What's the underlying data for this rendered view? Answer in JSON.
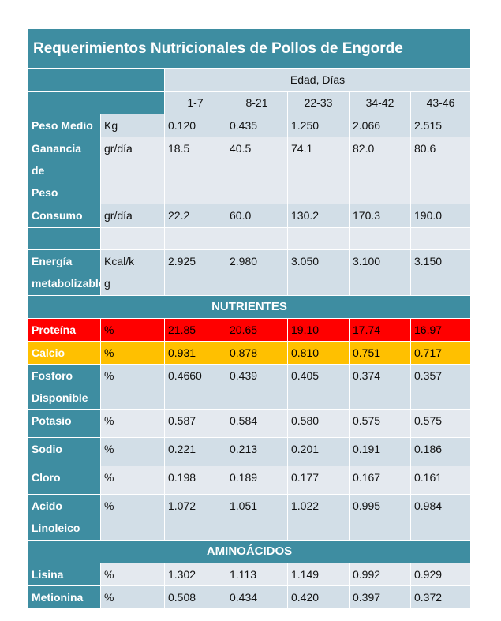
{
  "title": "Requerimientos Nutricionales de Pollos de Engorde",
  "age_header": "Edad, Días",
  "age_ranges": [
    "1-7",
    "8-21",
    "22-33",
    "34-42",
    "43-46"
  ],
  "rows_top": [
    {
      "label": "Peso Medio",
      "unit": "Kg",
      "values": [
        "0.120",
        "0.435",
        "1.250",
        "2.066",
        "2.515"
      ]
    },
    {
      "label_l1": "Ganancia de",
      "label_l2": "Peso",
      "unit": "gr/día",
      "values": [
        "18.5",
        "40.5",
        "74.1",
        "82.0",
        "80.6"
      ]
    },
    {
      "label": "Consumo",
      "unit": "gr/día",
      "values": [
        "22.2",
        "60.0",
        "130.2",
        "170.3",
        "190.0"
      ]
    },
    {
      "label_l1": "Energía",
      "label_l2": "metabolizable",
      "unit_l1": "Kcal/k",
      "unit_l2": "g",
      "values": [
        "2.925",
        "2.980",
        "3.050",
        "3.100",
        "3.150"
      ]
    }
  ],
  "nutrients_header": "NUTRIENTES",
  "nutrients": [
    {
      "label": "Proteína",
      "unit": "%",
      "values": [
        "21.85",
        "20.65",
        "19.10",
        "17.74",
        "16.97"
      ]
    },
    {
      "label": "Calcio",
      "unit": "%",
      "values": [
        "0.931",
        "0.878",
        "0.810",
        "0.751",
        "0.717"
      ]
    },
    {
      "label_l1": "Fosforo",
      "label_l2": "Disponible",
      "unit": "%",
      "values": [
        "0.4660",
        "0.439",
        "0.405",
        "0.374",
        "0.357"
      ]
    },
    {
      "label": "Potasio",
      "unit": "%",
      "values": [
        "0.587",
        "0.584",
        "0.580",
        "0.575",
        "0.575"
      ]
    },
    {
      "label": "Sodio",
      "unit": "%",
      "values": [
        "0.221",
        "0.213",
        "0.201",
        "0.191",
        "0.186"
      ]
    },
    {
      "label": "Cloro",
      "unit": "%",
      "values": [
        "0.198",
        "0.189",
        "0.177",
        "0.167",
        "0.161"
      ]
    },
    {
      "label_l1": "Acido",
      "label_l2": "Linoleico",
      "unit": "%",
      "values": [
        "1.072",
        "1.051",
        "1.022",
        "0.995",
        "0.984"
      ]
    }
  ],
  "amino_header": "AMINOÁCIDOS",
  "amino": [
    {
      "label": "Lisina",
      "unit": "%",
      "values": [
        "1.302",
        "1.113",
        "1.149",
        "0.992",
        "0.929"
      ]
    },
    {
      "label": "Metionina",
      "unit": "%",
      "values": [
        "0.508",
        "0.434",
        "0.420",
        "0.397",
        "0.372"
      ]
    }
  ],
  "colors": {
    "header": "#3e8da1",
    "row_light": "#d2dee7",
    "row_dark": "#e4e9ef",
    "protein": "#ff0000",
    "calcium": "#ffc000"
  }
}
